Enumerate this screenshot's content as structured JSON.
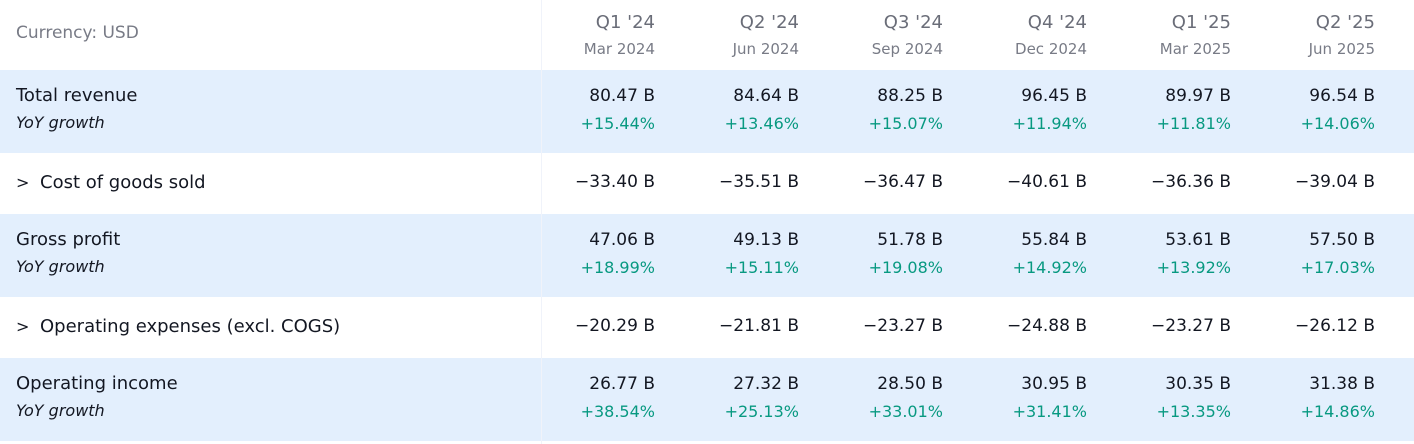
{
  "currency_label": "Currency: USD",
  "columns": [
    {
      "quarter": "Q1 '24",
      "date": "Mar 2024"
    },
    {
      "quarter": "Q2 '24",
      "date": "Jun 2024"
    },
    {
      "quarter": "Q3 '24",
      "date": "Sep 2024"
    },
    {
      "quarter": "Q4 '24",
      "date": "Dec 2024"
    },
    {
      "quarter": "Q1 '25",
      "date": "Mar 2025"
    },
    {
      "quarter": "Q2 '25",
      "date": "Jun 2025"
    }
  ],
  "rows": [
    {
      "label": "Total revenue",
      "sublabel": "YoY growth",
      "expandable": false,
      "values": [
        "80.47 B",
        "84.64 B",
        "88.25 B",
        "96.45 B",
        "89.97 B",
        "96.54 B"
      ],
      "growth": [
        "+15.44%",
        "+13.46%",
        "+15.07%",
        "+11.94%",
        "+11.81%",
        "+14.06%"
      ]
    },
    {
      "label": "Cost of goods sold",
      "expandable": true,
      "chevron": ">",
      "values": [
        "−33.40 B",
        "−35.51 B",
        "−36.47 B",
        "−40.61 B",
        "−36.36 B",
        "−39.04 B"
      ]
    },
    {
      "label": "Gross profit",
      "sublabel": "YoY growth",
      "expandable": false,
      "values": [
        "47.06 B",
        "49.13 B",
        "51.78 B",
        "55.84 B",
        "53.61 B",
        "57.50 B"
      ],
      "growth": [
        "+18.99%",
        "+15.11%",
        "+19.08%",
        "+14.92%",
        "+13.92%",
        "+17.03%"
      ]
    },
    {
      "label": "Operating expenses (excl. COGS)",
      "expandable": true,
      "chevron": ">",
      "values": [
        "−20.29 B",
        "−21.81 B",
        "−23.27 B",
        "−24.88 B",
        "−23.27 B",
        "−26.12 B"
      ]
    },
    {
      "label": "Operating income",
      "sublabel": "YoY growth",
      "expandable": false,
      "values": [
        "26.77 B",
        "27.32 B",
        "28.50 B",
        "30.95 B",
        "30.35 B",
        "31.38 B"
      ],
      "growth": [
        "+38.54%",
        "+25.13%",
        "+33.01%",
        "+31.41%",
        "+13.35%",
        "+14.86%"
      ]
    }
  ],
  "colors": {
    "highlight_row": "#e3effd",
    "growth_positive": "#089981",
    "header_text": "#787b86",
    "body_text": "#131722"
  },
  "icons": {
    "expand": "chevron-right-icon"
  }
}
